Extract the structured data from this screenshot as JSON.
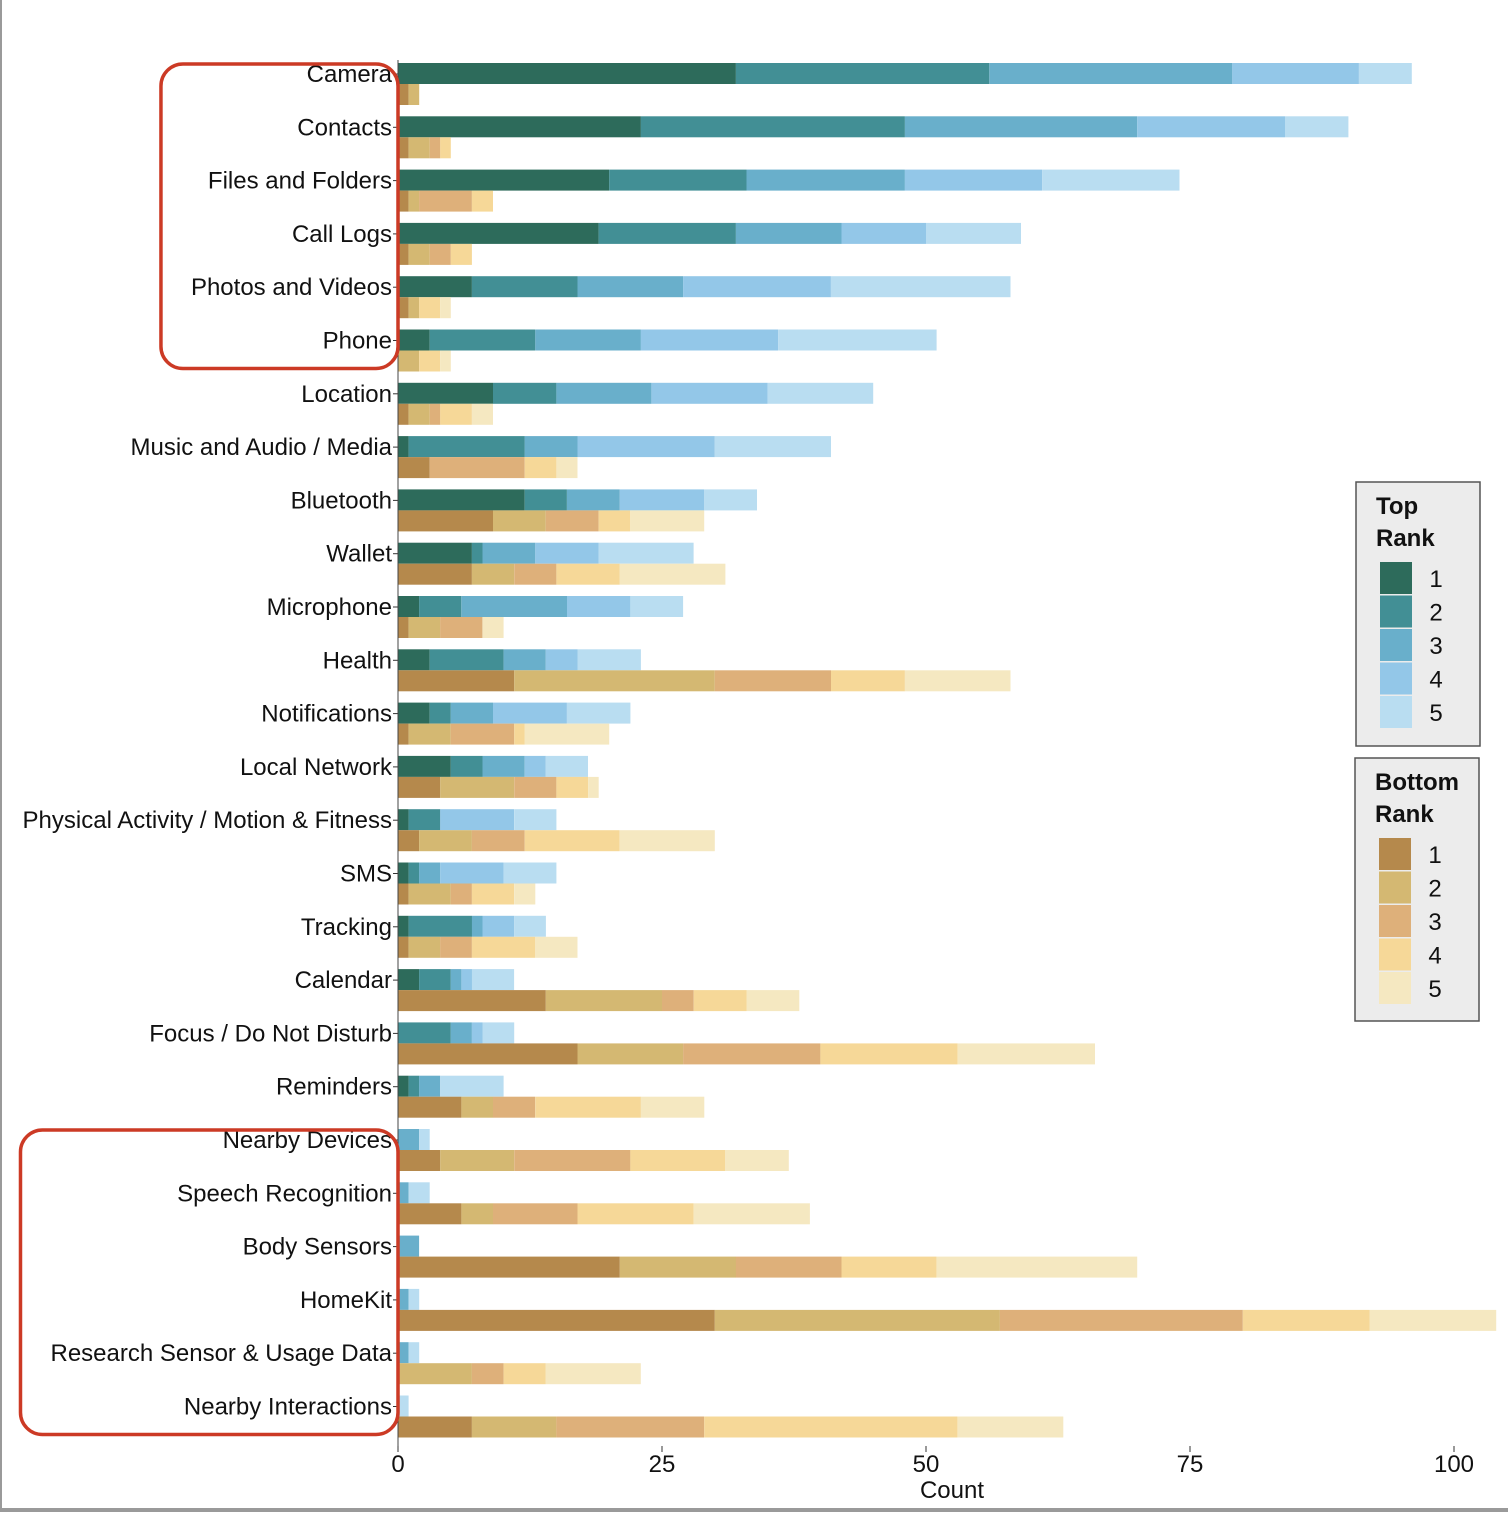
{
  "chart_data": {
    "type": "bar",
    "orientation": "horizontal",
    "stacked": true,
    "xlabel": "Count",
    "ylabel": "",
    "xlim": [
      0,
      104
    ],
    "x_ticks": [
      "0",
      "25",
      "50",
      "75",
      "100"
    ],
    "grid": false,
    "legend_placement": "right",
    "categories": [
      "Camera",
      "Contacts",
      "Files and Folders",
      "Call Logs",
      "Photos and Videos",
      "Phone",
      "Location",
      "Music and Audio / Media",
      "Bluetooth",
      "Wallet",
      "Microphone",
      "Health",
      "Notifications",
      "Local Network",
      "Physical Activity / Motion & Fitness",
      "SMS",
      "Tracking",
      "Calendar",
      "Focus / Do Not Disturb",
      "Reminders",
      "Nearby Devices",
      "Speech Recognition",
      "Body Sensors",
      "HomeKit",
      "Research Sensor & Usage Data",
      "Nearby Interactions"
    ],
    "top_rank": {
      "legend_title": [
        "Top",
        "Rank"
      ],
      "levels": [
        "1",
        "2",
        "3",
        "4",
        "5"
      ],
      "colors": [
        "#2d6b5b",
        "#428f95",
        "#69afcb",
        "#93c7e8",
        "#b9ddf1"
      ],
      "values": [
        [
          32,
          24,
          23,
          12,
          5
        ],
        [
          23,
          25,
          22,
          14,
          6
        ],
        [
          20,
          13,
          15,
          13,
          13
        ],
        [
          19,
          13,
          10,
          8,
          9
        ],
        [
          7,
          10,
          10,
          14,
          17
        ],
        [
          3,
          10,
          10,
          13,
          15
        ],
        [
          9,
          6,
          9,
          11,
          10
        ],
        [
          1,
          11,
          5,
          13,
          11
        ],
        [
          12,
          4,
          5,
          8,
          5
        ],
        [
          7,
          1,
          5,
          6,
          9
        ],
        [
          2,
          4,
          10,
          6,
          5
        ],
        [
          3,
          7,
          4,
          3,
          6
        ],
        [
          3,
          2,
          4,
          7,
          6
        ],
        [
          5,
          3,
          4,
          2,
          4
        ],
        [
          1,
          3,
          0,
          7,
          4
        ],
        [
          1,
          1,
          2,
          6,
          5
        ],
        [
          1,
          6,
          1,
          3,
          3
        ],
        [
          2,
          3,
          1,
          1,
          4
        ],
        [
          0,
          5,
          2,
          1,
          3
        ],
        [
          1,
          1,
          2,
          0,
          6
        ],
        [
          0,
          0,
          2,
          0,
          1
        ],
        [
          0,
          0,
          1,
          0,
          2
        ],
        [
          0,
          0,
          2,
          0,
          0
        ],
        [
          0,
          0,
          1,
          0,
          1
        ],
        [
          0,
          0,
          1,
          0,
          1
        ],
        [
          0,
          0,
          0,
          0,
          1
        ]
      ]
    },
    "bottom_rank": {
      "legend_title": [
        "Bottom",
        "Rank"
      ],
      "levels": [
        "1",
        "2",
        "3",
        "4",
        "5"
      ],
      "colors": [
        "#b5894c",
        "#d4b872",
        "#deb07a",
        "#f6d898",
        "#f5e8c1"
      ],
      "values": [
        [
          1,
          1,
          0,
          0,
          0
        ],
        [
          1,
          2,
          1,
          1,
          0
        ],
        [
          1,
          1,
          5,
          2,
          0
        ],
        [
          1,
          2,
          2,
          2,
          0
        ],
        [
          1,
          1,
          0,
          2,
          1
        ],
        [
          0,
          2,
          0,
          2,
          1
        ],
        [
          1,
          2,
          1,
          3,
          2
        ],
        [
          3,
          0,
          9,
          3,
          2
        ],
        [
          9,
          5,
          5,
          3,
          7
        ],
        [
          7,
          4,
          4,
          6,
          10
        ],
        [
          1,
          3,
          4,
          0,
          2
        ],
        [
          11,
          19,
          11,
          7,
          10
        ],
        [
          1,
          4,
          6,
          1,
          8
        ],
        [
          4,
          7,
          4,
          3,
          1
        ],
        [
          2,
          5,
          5,
          9,
          9
        ],
        [
          1,
          4,
          2,
          4,
          2
        ],
        [
          1,
          3,
          3,
          6,
          4
        ],
        [
          14,
          11,
          3,
          5,
          5
        ],
        [
          17,
          10,
          13,
          13,
          13
        ],
        [
          6,
          3,
          4,
          10,
          6
        ],
        [
          4,
          7,
          11,
          9,
          6
        ],
        [
          6,
          3,
          8,
          11,
          11
        ],
        [
          21,
          11,
          10,
          9,
          19
        ],
        [
          30,
          27,
          23,
          12,
          12
        ],
        [
          0,
          7,
          3,
          4,
          9
        ],
        [
          7,
          8,
          14,
          24,
          10
        ]
      ]
    },
    "highlight_groups": [
      [
        "Camera",
        "Phone"
      ],
      [
        "Nearby Devices",
        "Nearby Interactions"
      ]
    ]
  }
}
